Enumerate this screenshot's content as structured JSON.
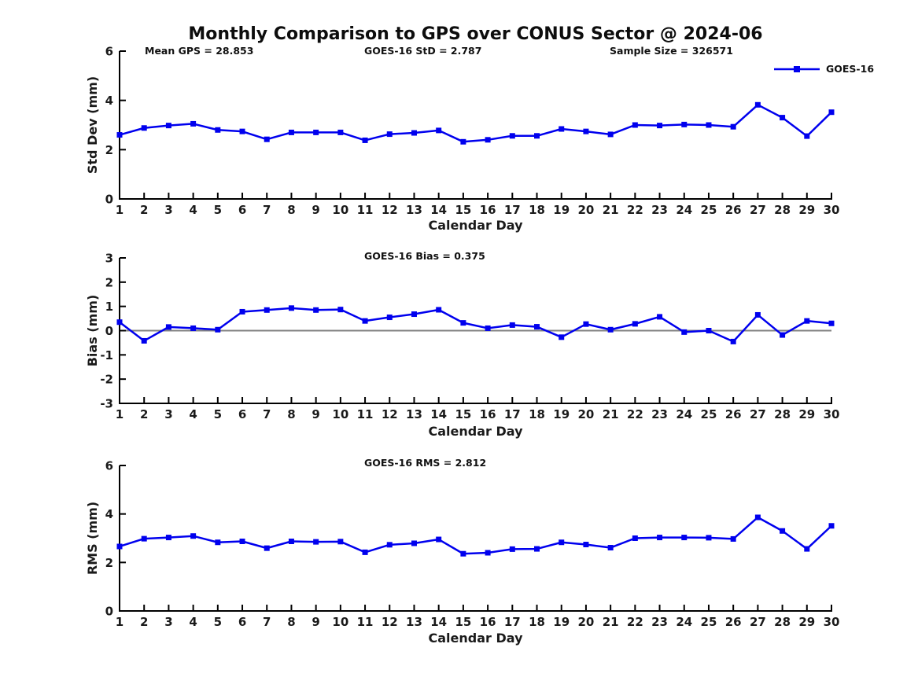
{
  "figure": {
    "title": "Monthly Comparison to GPS over CONUS Sector @ 2024-06",
    "annotations": {
      "mean_gps": "Mean GPS = 28.853",
      "goes16_std": "GOES-16 StD = 2.787",
      "sample_size": "Sample Size = 326571",
      "goes16_bias": "GOES-16 Bias = 0.375",
      "goes16_rms": "GOES-16 RMS = 2.812"
    },
    "legend": {
      "label": "GOES-16",
      "position": "top-right",
      "marker": "square"
    },
    "colors": {
      "line": "#0000EE",
      "zero_line": "#808080",
      "axis": "#000000",
      "text": "#1a1a1a"
    }
  },
  "chart_data": [
    {
      "id": "std_dev",
      "type": "line",
      "ylabel": "Std Dev (mm)",
      "xlabel": "Calendar Day",
      "ylim": [
        0,
        6
      ],
      "yticks": [
        0,
        2,
        4,
        6
      ],
      "xlim": [
        1,
        30
      ],
      "grid": false,
      "days": [
        1,
        2,
        3,
        4,
        5,
        6,
        7,
        8,
        9,
        10,
        11,
        12,
        13,
        14,
        15,
        16,
        17,
        18,
        19,
        20,
        21,
        22,
        23,
        24,
        25,
        26,
        27,
        28,
        29,
        30
      ],
      "series": [
        {
          "name": "GOES-16",
          "values": [
            2.6,
            2.88,
            2.98,
            3.05,
            2.8,
            2.74,
            2.42,
            2.7,
            2.7,
            2.7,
            2.38,
            2.63,
            2.68,
            2.78,
            2.32,
            2.4,
            2.56,
            2.56,
            2.84,
            2.74,
            2.62,
            3.0,
            2.98,
            3.02,
            3.0,
            2.93,
            3.82,
            3.3,
            2.55,
            3.52
          ]
        }
      ]
    },
    {
      "id": "bias",
      "type": "line",
      "ylabel": "Bias (mm)",
      "xlabel": "Calendar Day",
      "ylim": [
        -3,
        3
      ],
      "yticks": [
        -3,
        -2,
        -1,
        0,
        1,
        2,
        3
      ],
      "xlim": [
        1,
        30
      ],
      "zero_line": true,
      "grid": false,
      "days": [
        1,
        2,
        3,
        4,
        5,
        6,
        7,
        8,
        9,
        10,
        11,
        12,
        13,
        14,
        15,
        16,
        17,
        18,
        19,
        20,
        21,
        22,
        23,
        24,
        25,
        26,
        27,
        28,
        29,
        30
      ],
      "series": [
        {
          "name": "GOES-16",
          "values": [
            0.35,
            -0.42,
            0.15,
            0.1,
            0.04,
            0.78,
            0.85,
            0.93,
            0.85,
            0.87,
            0.4,
            0.55,
            0.68,
            0.86,
            0.32,
            0.1,
            0.23,
            0.16,
            -0.27,
            0.27,
            0.04,
            0.28,
            0.57,
            -0.06,
            0.0,
            -0.45,
            0.65,
            -0.18,
            0.4,
            0.3
          ]
        }
      ]
    },
    {
      "id": "rms",
      "type": "line",
      "ylabel": "RMS (mm)",
      "xlabel": "Calendar Day",
      "ylim": [
        0,
        6
      ],
      "yticks": [
        0,
        2,
        4,
        6
      ],
      "xlim": [
        1,
        30
      ],
      "grid": false,
      "days": [
        1,
        2,
        3,
        4,
        5,
        6,
        7,
        8,
        9,
        10,
        11,
        12,
        13,
        14,
        15,
        16,
        17,
        18,
        19,
        20,
        21,
        22,
        23,
        24,
        25,
        26,
        27,
        28,
        29,
        30
      ],
      "series": [
        {
          "name": "GOES-16",
          "values": [
            2.66,
            2.98,
            3.03,
            3.09,
            2.83,
            2.87,
            2.59,
            2.87,
            2.85,
            2.86,
            2.42,
            2.73,
            2.79,
            2.95,
            2.36,
            2.4,
            2.55,
            2.56,
            2.83,
            2.74,
            2.61,
            3.0,
            3.03,
            3.03,
            3.02,
            2.97,
            3.86,
            3.3,
            2.56,
            3.51
          ]
        }
      ]
    }
  ]
}
